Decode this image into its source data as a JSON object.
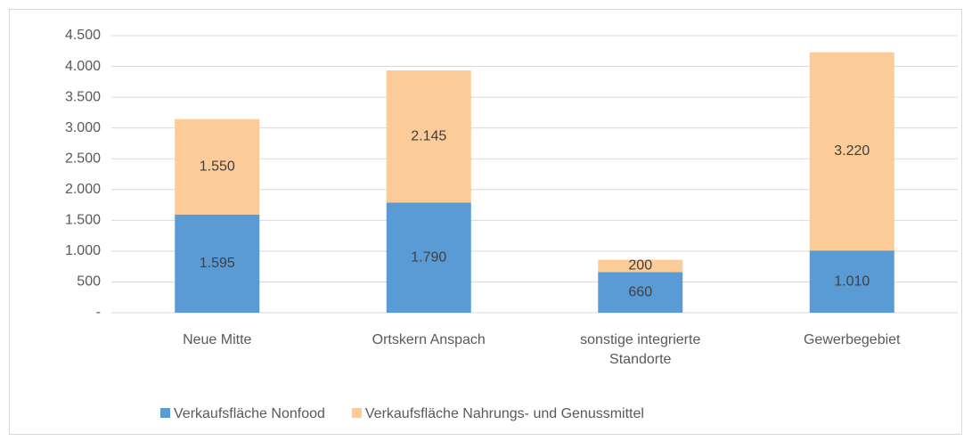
{
  "chart_data": {
    "type": "stacked_bar",
    "categories": [
      "Neue Mitte",
      "Ortskern Anspach",
      "sonstige integrierte Standorte",
      "Gewerbegebiet"
    ],
    "series": [
      {
        "name": "Verkaufsfläche Nonfood",
        "color": "#5b9bd5",
        "values": [
          1595,
          1790,
          660,
          1010
        ],
        "value_labels": [
          "1.595",
          "1.790",
          "660",
          "1.010"
        ]
      },
      {
        "name": "Verkaufsfläche Nahrungs- und Genussmittel",
        "color": "#fbcb98",
        "values": [
          1550,
          2145,
          200,
          3220
        ],
        "value_labels": [
          "1.550",
          "2.145",
          "200",
          "3.220"
        ]
      }
    ],
    "ylim": [
      0,
      4500
    ],
    "yticks": [
      {
        "value": 0,
        "label": "-"
      },
      500,
      {
        "value": 1000,
        "label": "1.000"
      },
      {
        "value": 1500,
        "label": "1.500"
      },
      {
        "value": 2000,
        "label": "2.000"
      },
      {
        "value": 2500,
        "label": "2.500"
      },
      {
        "value": 3000,
        "label": "3.000"
      },
      {
        "value": 3500,
        "label": "3.500"
      },
      {
        "value": 4000,
        "label": "4.000"
      },
      {
        "value": 4500,
        "label": "4.500"
      }
    ],
    "grid": true,
    "legend": "bottom"
  }
}
